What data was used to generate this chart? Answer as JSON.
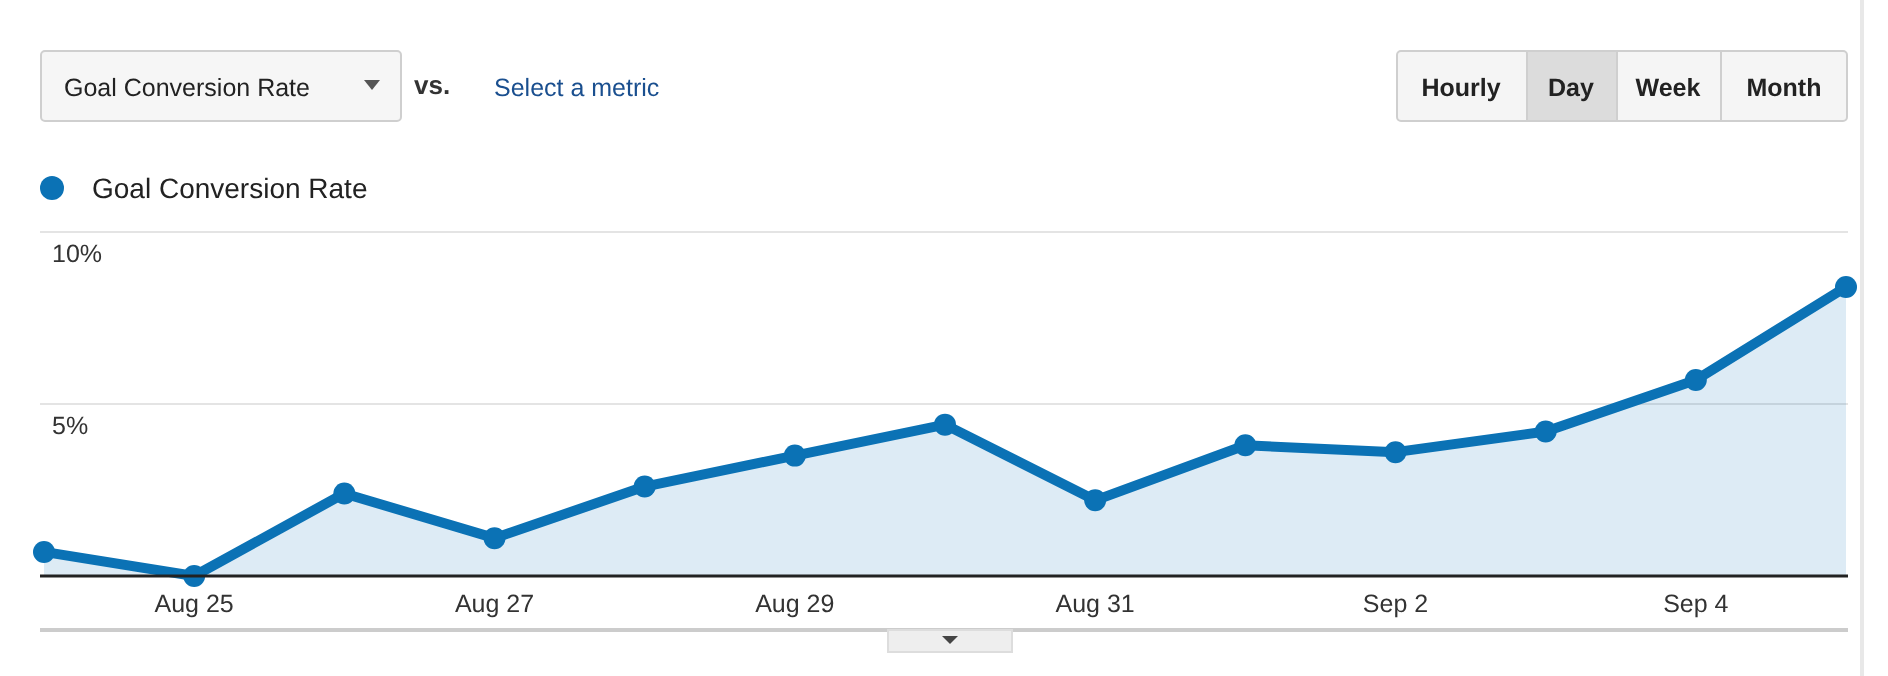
{
  "chart_data": {
    "type": "area",
    "legend": "top left",
    "grid": "y",
    "marker": "circle",
    "line_style": "solid",
    "x": [
      "--08-24",
      "--08-25",
      "--08-26",
      "--08-27",
      "--08-28",
      "--08-29",
      "--08-30",
      "--08-31",
      "--09-01",
      "--09-02",
      "--09-03",
      "--09-04",
      "--09-05"
    ],
    "series": [
      {
        "name": "Goal Conversion Rate",
        "color": "#0b72b5",
        "values": [
          0.7,
          0,
          2.4,
          1.1,
          2.6,
          3.5,
          4.4,
          2.2,
          3.8,
          3.6,
          4.2,
          5.7,
          8.4
        ]
      }
    ],
    "xlim": [
      "--08-24",
      "--09-05"
    ],
    "xticks": [
      {
        "value": "--08-25",
        "label": "Aug 25"
      },
      {
        "value": "--08-27",
        "label": "Aug 27"
      },
      {
        "value": "--08-29",
        "label": "Aug 29"
      },
      {
        "value": "--08-31",
        "label": "Aug 31"
      },
      {
        "value": "--09-02",
        "label": "Sep 2"
      },
      {
        "value": "--09-04",
        "label": "Sep 4"
      }
    ],
    "ylim": [
      0,
      10
    ],
    "yticks": [
      {
        "value": 5,
        "label": "5%"
      },
      {
        "value": 10,
        "label": "10%"
      }
    ],
    "annotations": [
      "Goal Conversion Rate",
      "vs.",
      "Select a metric",
      "Hourly",
      "Day",
      "Week",
      "Month"
    ]
  }
}
